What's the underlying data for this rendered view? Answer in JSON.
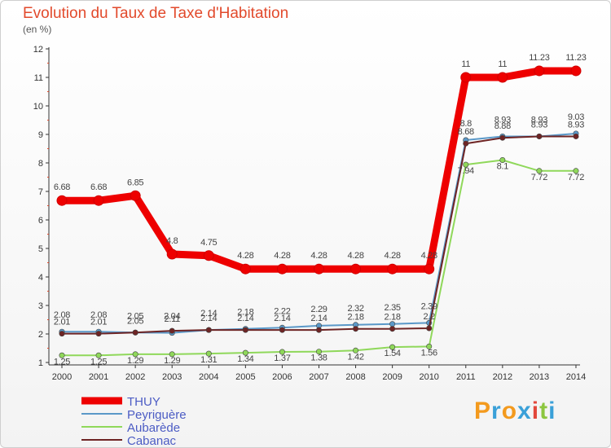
{
  "title": "Evolution du Taux de Taxe d'Habitation",
  "subtitle": "(en %)",
  "logo": {
    "text": "Proxiti",
    "colors": [
      "#f39a1e",
      "#3aa0d8",
      "#f39a1e",
      "#3aa0d8",
      "#e2473b",
      "#8cc63f",
      "#3aa0d8"
    ]
  },
  "chart_data": {
    "type": "line",
    "x": [
      "2000",
      "2001",
      "2002",
      "2003",
      "2004",
      "2005",
      "2006",
      "2007",
      "2008",
      "2009",
      "2010",
      "2011",
      "2012",
      "2013",
      "2014"
    ],
    "ylim": [
      1,
      12
    ],
    "yticks": [
      1,
      2,
      3,
      4,
      5,
      6,
      7,
      8,
      9,
      10,
      11,
      12
    ],
    "grid": false,
    "legend": "bottom-left",
    "series": [
      {
        "name": "Aubarède",
        "color": "#8fd85a",
        "width": 2,
        "label_offset": 11,
        "values": [
          1.25,
          1.25,
          1.29,
          1.29,
          1.31,
          1.34,
          1.37,
          1.38,
          1.42,
          1.54,
          1.56,
          7.94,
          8.1,
          7.72,
          7.72
        ],
        "labels": [
          "1.25",
          "1.25",
          "1.29",
          "1.29",
          "1.31",
          "1.34",
          "1.37",
          "1.38",
          "1.42",
          "1.54",
          "1.56",
          "7.94",
          "8.1",
          "7.72",
          "7.72"
        ]
      },
      {
        "name": "Peyriguère",
        "color": "#5a98c8",
        "width": 2,
        "label_offset": -17,
        "values": [
          2.08,
          2.08,
          2.05,
          2.04,
          2.14,
          2.18,
          2.22,
          2.29,
          2.32,
          2.35,
          2.39,
          8.8,
          8.93,
          8.93,
          9.03
        ],
        "labels": [
          "2.08",
          "2.08",
          "2.05",
          "2.04",
          "2.14",
          "2.18",
          "2.22",
          "2.29",
          "2.32",
          "2.35",
          "2.39",
          "8.8",
          "8.93",
          "8.93",
          "9.03"
        ]
      },
      {
        "name": "Cabanac",
        "color": "#6e2424",
        "width": 2,
        "label_offset": -11,
        "values": [
          2.01,
          2.01,
          2.05,
          2.11,
          2.14,
          2.14,
          2.14,
          2.14,
          2.18,
          2.18,
          2.2,
          8.68,
          8.88,
          8.93,
          8.93
        ],
        "labels": [
          "2.01",
          "2.01",
          "2.05",
          "2.11",
          "2.14",
          "2.14",
          "2.14",
          "2.14",
          "2.18",
          "2.18",
          "2.2",
          "8.68",
          "8.88",
          "8.93",
          "8.93"
        ]
      },
      {
        "name": "THUY",
        "color": "#ee0000",
        "width": 9,
        "label_offset": -13,
        "values": [
          6.68,
          6.68,
          6.85,
          4.8,
          4.75,
          4.28,
          4.28,
          4.28,
          4.28,
          4.28,
          4.28,
          11,
          11,
          11.23,
          11.23
        ],
        "labels": [
          "6.68",
          "6.68",
          "6.85",
          "4.8",
          "4.75",
          "4.28",
          "4.28",
          "4.28",
          "4.28",
          "4.28",
          "4.28",
          "11",
          "11",
          "11.23",
          "11.23"
        ]
      }
    ],
    "legend_order": [
      "THUY",
      "Peyriguère",
      "Aubarède",
      "Cabanac"
    ]
  }
}
